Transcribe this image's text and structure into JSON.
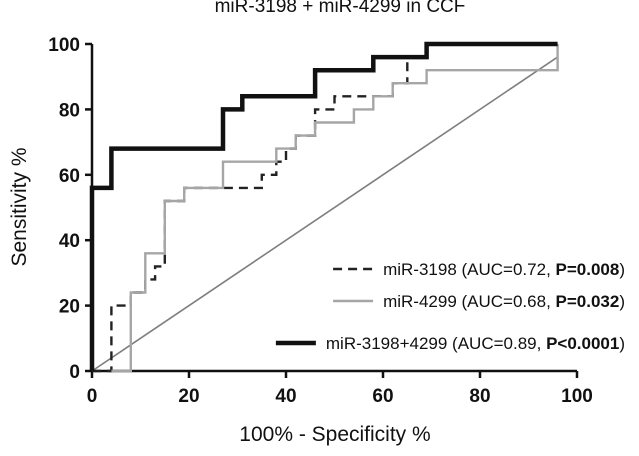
{
  "chart_data": {
    "type": "line",
    "title": "miR-3198 + miR-4299 in CCF",
    "xlabel": "100% - Specificity %",
    "ylabel": "Sensitivity %",
    "xlim": [
      0,
      100
    ],
    "ylim": [
      0,
      100
    ],
    "xticks": [
      "0",
      "20",
      "40",
      "60",
      "80",
      "100"
    ],
    "yticks": [
      "0",
      "20",
      "40",
      "60",
      "80",
      "100"
    ],
    "grid": false,
    "legend_position": "bottom-right",
    "reference_line": {
      "x": [
        0,
        96
      ],
      "y": [
        0,
        96
      ],
      "color": "#7f7f7f"
    },
    "series": [
      {
        "name": "miR-3198",
        "auc_label": "(AUC=0.72, ",
        "p_label": "P=0.008",
        "close_paren": ")",
        "color": "#222222",
        "style": "dashed",
        "x": [
          0,
          4,
          4,
          8,
          8,
          11,
          11,
          13,
          13,
          15,
          15,
          19,
          19,
          35,
          35,
          38,
          38,
          40,
          40,
          42,
          42,
          46,
          46,
          50,
          50,
          62,
          62,
          65,
          65,
          69,
          69,
          96,
          96
        ],
        "y": [
          0,
          0,
          20,
          20,
          24,
          24,
          28,
          28,
          32,
          32,
          52,
          52,
          56,
          56,
          60,
          60,
          64,
          64,
          68,
          68,
          72,
          72,
          80,
          80,
          84,
          84,
          88,
          88,
          96,
          96,
          100,
          100,
          100
        ]
      },
      {
        "name": "miR-4299",
        "auc_label": "(AUC=0.68, ",
        "p_label": "P=0.032",
        "close_paren": ")",
        "color": "#a6a6a6",
        "style": "solid",
        "x": [
          4,
          8,
          8,
          11,
          11,
          15,
          15,
          19,
          19,
          27,
          27,
          38,
          38,
          42,
          42,
          46,
          46,
          54,
          54,
          58,
          58,
          62,
          62,
          69,
          69,
          77,
          77,
          85,
          85,
          96,
          96
        ],
        "y": [
          0,
          0,
          24,
          24,
          36,
          36,
          52,
          52,
          56,
          56,
          64,
          64,
          68,
          68,
          72,
          72,
          76,
          76,
          80,
          80,
          84,
          84,
          88,
          88,
          92,
          92,
          92,
          92,
          92,
          92,
          100
        ]
      },
      {
        "name": "miR-3198+4299",
        "auc_label": "(AUC=0.89, ",
        "p_label": "P<0.0001",
        "close_paren": ")",
        "color": "#111111",
        "style": "solid-thick",
        "x": [
          0,
          0,
          4,
          4,
          27,
          27,
          31,
          31,
          46,
          46,
          58,
          58,
          69,
          69,
          96
        ],
        "y": [
          0,
          56,
          56,
          68,
          68,
          80,
          80,
          84,
          84,
          92,
          92,
          96,
          96,
          100,
          100
        ]
      }
    ]
  }
}
